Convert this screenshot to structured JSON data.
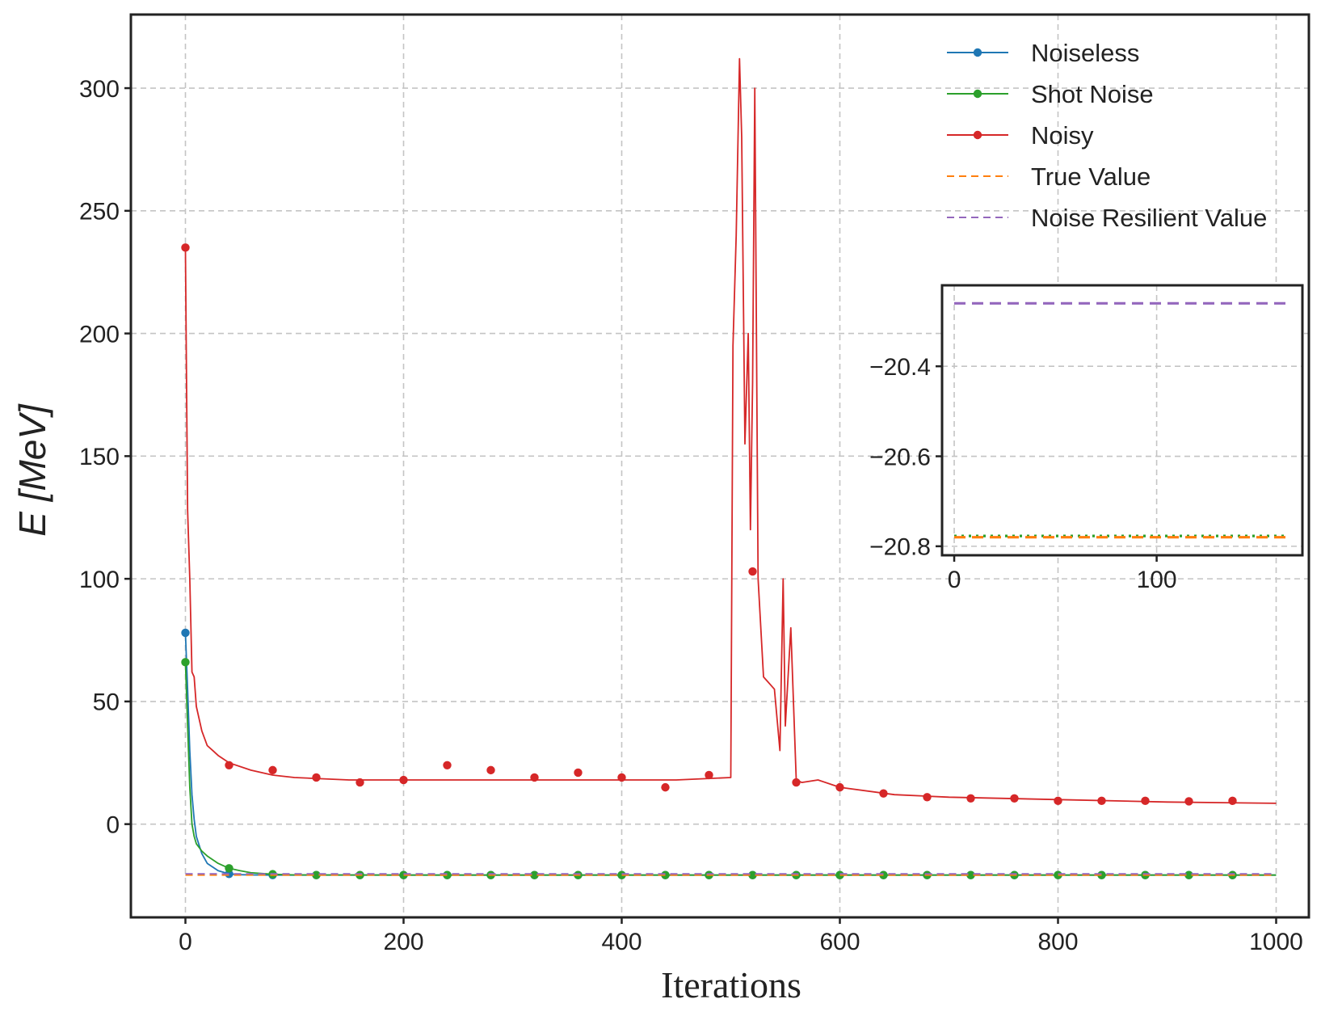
{
  "chart_data": [
    {
      "type": "line",
      "title": "",
      "xlabel": "Iterations",
      "ylabel": "E [MeV]",
      "xlim": [
        -50,
        1030
      ],
      "ylim": [
        -38,
        330
      ],
      "xticks": [
        0,
        200,
        400,
        600,
        800,
        1000
      ],
      "xtick_labels": [
        "0",
        "200",
        "400",
        "600",
        "800",
        "1000"
      ],
      "yticks": [
        0,
        50,
        100,
        150,
        200,
        250,
        300
      ],
      "ytick_labels": [
        "0",
        "50",
        "100",
        "150",
        "200",
        "250",
        "300"
      ],
      "grid": true,
      "legend_position": "top-right",
      "series": [
        {
          "name": "Noiseless",
          "style": "line-with-markers",
          "color": "#1f77b4",
          "x": [
            0,
            2,
            4,
            6,
            8,
            10,
            15,
            20,
            30,
            40,
            50,
            60,
            80,
            100,
            200,
            400,
            600,
            800,
            1000
          ],
          "values": [
            78,
            55,
            30,
            12,
            2,
            -5,
            -12,
            -16,
            -19,
            -20.3,
            -20.6,
            -20.7,
            -20.76,
            -20.78,
            -20.78,
            -20.78,
            -20.78,
            -20.78,
            -20.78
          ],
          "marker_x": [
            0,
            40,
            80,
            120,
            160,
            200,
            240,
            280,
            320,
            360,
            400,
            440,
            480,
            520,
            560,
            600,
            640,
            680,
            720,
            760,
            800,
            840,
            880,
            920,
            960
          ],
          "marker_values": [
            78,
            -20.3,
            -20.76,
            -20.78,
            -20.78,
            -20.78,
            -20.78,
            -20.78,
            -20.78,
            -20.78,
            -20.78,
            -20.78,
            -20.78,
            -20.78,
            -20.78,
            -20.78,
            -20.78,
            -20.78,
            -20.78,
            -20.78,
            -20.78,
            -20.78,
            -20.78,
            -20.78,
            -20.78
          ]
        },
        {
          "name": "Shot Noise",
          "style": "line-with-markers",
          "color": "#2ca02c",
          "x": [
            0,
            2,
            4,
            6,
            8,
            10,
            15,
            20,
            30,
            40,
            50,
            60,
            80,
            100,
            200,
            400,
            600,
            800,
            1000
          ],
          "values": [
            66,
            40,
            15,
            0,
            -5,
            -8,
            -11,
            -13,
            -16,
            -18,
            -19,
            -19.8,
            -20.4,
            -20.7,
            -20.78,
            -20.78,
            -20.78,
            -20.78,
            -20.78
          ],
          "marker_x": [
            0,
            40,
            80,
            120,
            160,
            200,
            240,
            280,
            320,
            360,
            400,
            440,
            480,
            520,
            560,
            600,
            640,
            680,
            720,
            760,
            800,
            840,
            880,
            920,
            960
          ],
          "marker_values": [
            66,
            -18,
            -20.4,
            -20.75,
            -20.78,
            -20.78,
            -20.78,
            -20.78,
            -20.78,
            -20.78,
            -20.78,
            -20.78,
            -20.78,
            -20.78,
            -20.78,
            -20.78,
            -20.78,
            -20.78,
            -20.78,
            -20.78,
            -20.78,
            -20.78,
            -20.78,
            -20.78,
            -20.78
          ]
        },
        {
          "name": "Noisy",
          "style": "line-with-markers",
          "color": "#d62728",
          "x": [
            0,
            2,
            4,
            6,
            8,
            10,
            15,
            20,
            25,
            30,
            40,
            60,
            80,
            100,
            150,
            200,
            300,
            400,
            450,
            500,
            502,
            505,
            508,
            510,
            513,
            516,
            518,
            520,
            522,
            525,
            530,
            540,
            545,
            548,
            550,
            555,
            560,
            565,
            580,
            600,
            650,
            700,
            800,
            900,
            1000
          ],
          "values": [
            235,
            128,
            100,
            62,
            60,
            48,
            38,
            32,
            30,
            28,
            25,
            22,
            20,
            19,
            18,
            18,
            18,
            18,
            18,
            19,
            195,
            240,
            312,
            280,
            155,
            200,
            120,
            180,
            300,
            100,
            60,
            55,
            30,
            100,
            40,
            80,
            18,
            17,
            18,
            15,
            12,
            11,
            10,
            9,
            8.5
          ],
          "marker_x": [
            0,
            40,
            80,
            120,
            160,
            200,
            240,
            280,
            320,
            360,
            400,
            440,
            480,
            520,
            560,
            600,
            640,
            680,
            720,
            760,
            800,
            840,
            880,
            920,
            960
          ],
          "marker_values": [
            235,
            24,
            22,
            19,
            17,
            18,
            24,
            22,
            19,
            21,
            19,
            15,
            20,
            103,
            17,
            15,
            12.5,
            11,
            10.5,
            10.5,
            9.5,
            9.5,
            9.5,
            9.3,
            9.5
          ]
        },
        {
          "name": "True Value",
          "style": "dashed",
          "color": "#ff7f0e",
          "x": [
            0,
            1000
          ],
          "values": [
            -20.78,
            -20.78
          ]
        },
        {
          "name": "Noise Resilient Value",
          "style": "dashed",
          "color": "#9467bd",
          "x": [
            0,
            1000
          ],
          "values": [
            -20.26,
            -20.26
          ]
        }
      ]
    },
    {
      "type": "line",
      "title": "",
      "xlabel": "",
      "ylabel": "",
      "xlim": [
        -6,
        172
      ],
      "ylim": [
        -20.82,
        -20.22
      ],
      "xticks": [
        0,
        100
      ],
      "xtick_labels": [
        "0",
        "100"
      ],
      "yticks": [
        -20.4,
        -20.6,
        -20.8
      ],
      "ytick_labels": [
        "−20.4",
        "−20.6",
        "−20.8"
      ],
      "grid": true,
      "series": [
        {
          "name": "Noise Resilient Value",
          "style": "dashed",
          "color": "#9467bd",
          "x": [
            0,
            165
          ],
          "values": [
            -20.26,
            -20.26
          ]
        },
        {
          "name": "Shot Noise",
          "style": "dotted",
          "color": "#2ca02c",
          "x": [
            0,
            165
          ],
          "values": [
            -20.777,
            -20.777
          ]
        },
        {
          "name": "True Value",
          "style": "dashed",
          "color": "#ff7f0e",
          "x": [
            0,
            165
          ],
          "values": [
            -20.78,
            -20.78
          ]
        }
      ]
    }
  ]
}
